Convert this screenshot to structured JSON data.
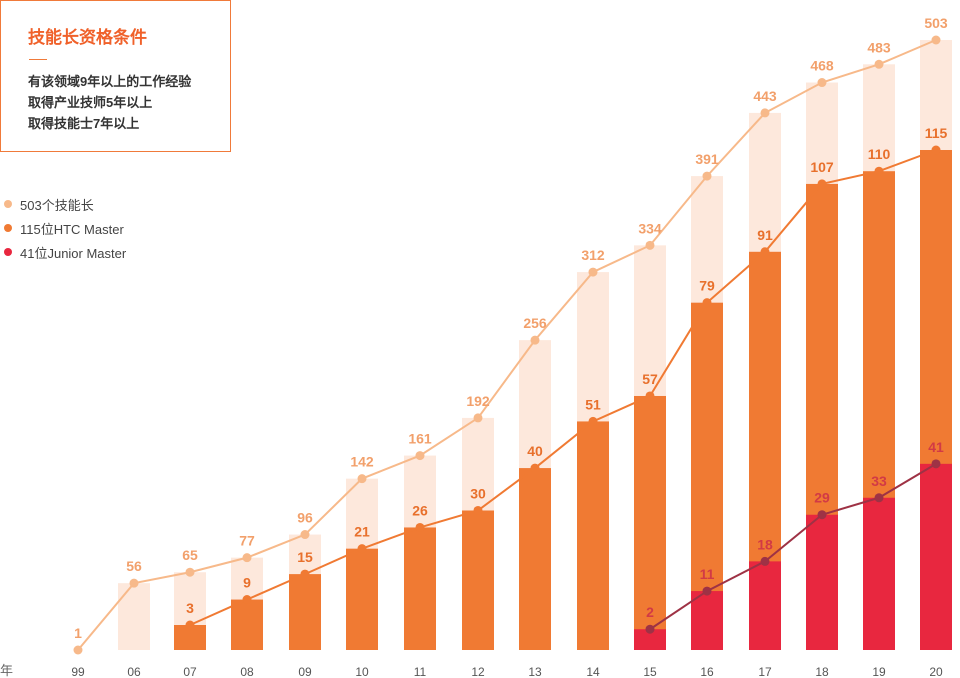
{
  "info": {
    "title": "技能长资格条件",
    "lines": [
      "有该领域9年以上的工作经验",
      "取得产业技师5年以上",
      "取得技能士7年以上"
    ]
  },
  "legend": [
    {
      "label": "503个技能长",
      "color": "#f7b98a"
    },
    {
      "label": "115位HTC Master",
      "color": "#f07a33"
    },
    {
      "label": "41位Junior Master",
      "color": "#e8273f"
    }
  ],
  "chart_data": {
    "type": "bar",
    "x_unit_label": "年",
    "categories": [
      "99",
      "06",
      "07",
      "08",
      "09",
      "10",
      "11",
      "12",
      "13",
      "14",
      "15",
      "16",
      "17",
      "18",
      "19",
      "20"
    ],
    "series": [
      {
        "name": "503个技能长",
        "color": "#f7b98a",
        "bar_color": "#fde8dc",
        "values": [
          1,
          56,
          65,
          77,
          96,
          142,
          161,
          192,
          256,
          312,
          334,
          391,
          443,
          468,
          483,
          503
        ]
      },
      {
        "name": "115位HTC Master",
        "color": "#f07a33",
        "bar_color": "#f07a33",
        "values": [
          null,
          null,
          3,
          9,
          15,
          21,
          26,
          30,
          40,
          51,
          57,
          79,
          91,
          107,
          110,
          115
        ]
      },
      {
        "name": "41位Junior Master",
        "color": "#e8273f",
        "bar_color": "#e8273f",
        "line_color": "#9e3245",
        "values": [
          null,
          null,
          null,
          null,
          null,
          null,
          null,
          null,
          null,
          null,
          2,
          11,
          18,
          29,
          33,
          41
        ]
      }
    ]
  }
}
